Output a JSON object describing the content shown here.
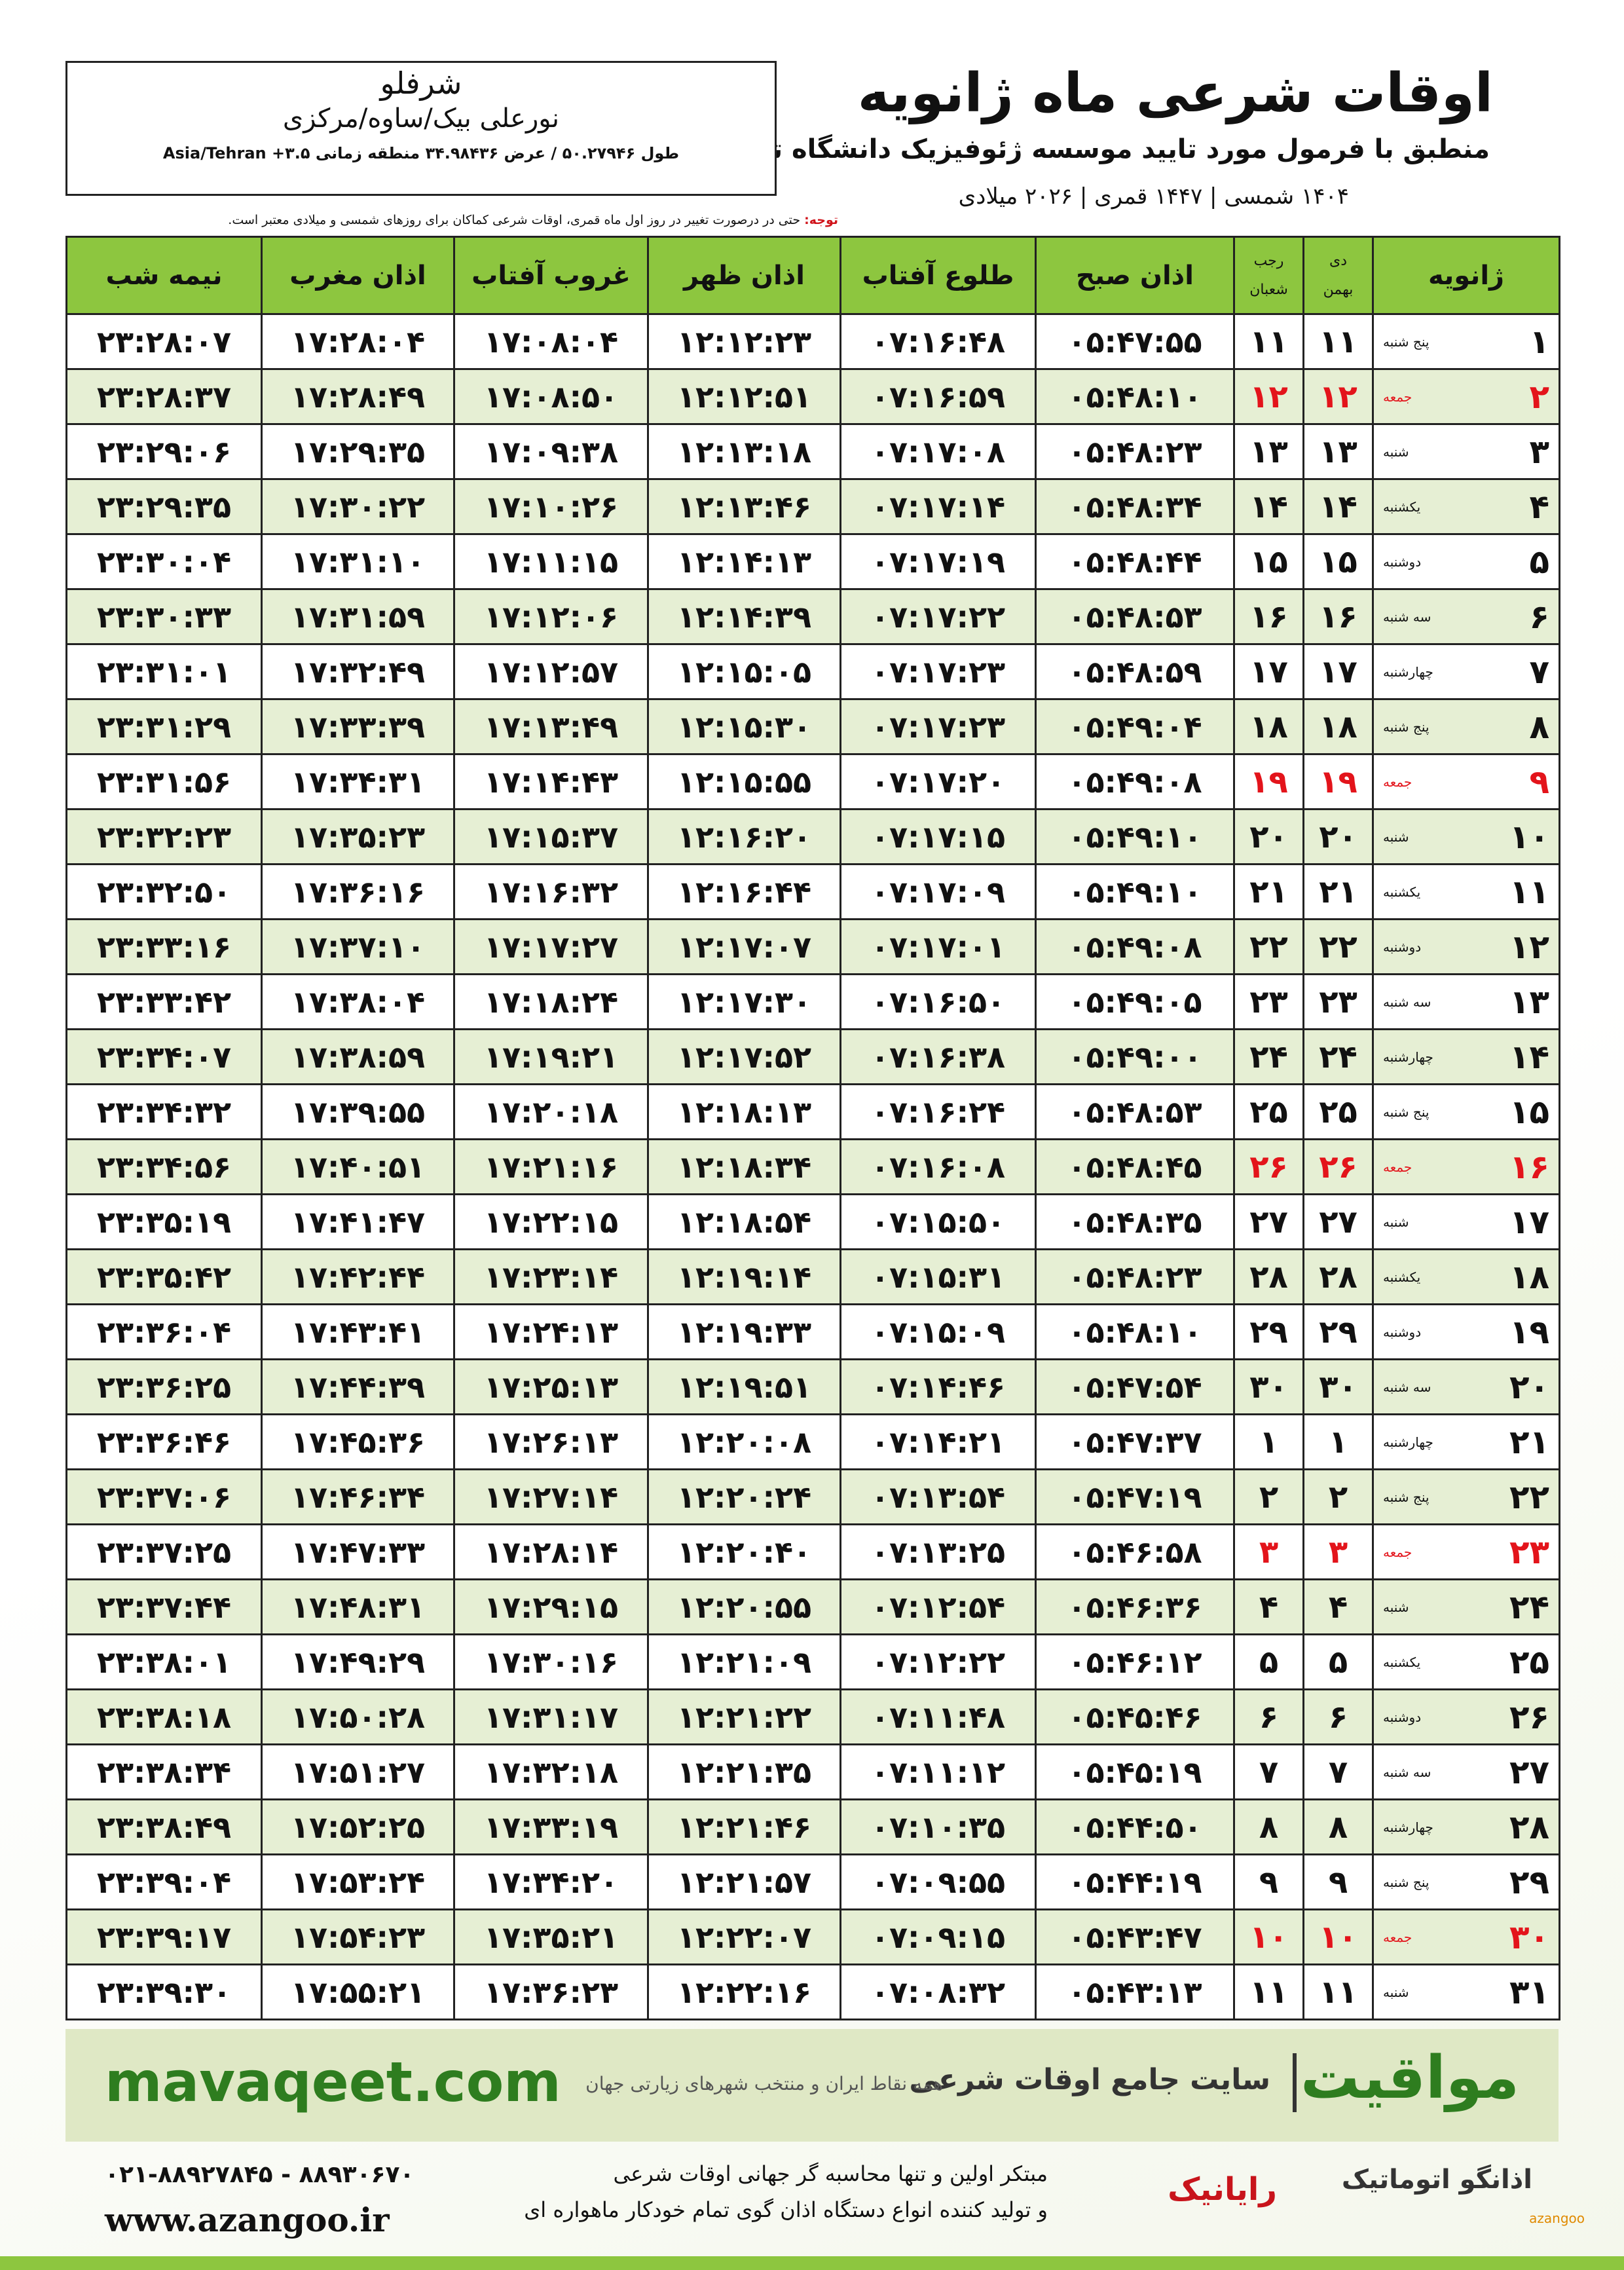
{
  "header": {
    "title": "اوقات شرعی ماه ژانویه",
    "subtitle": "منطبق با فرمول مورد تایید موسسه ژئوفیزیک دانشگاه تهران",
    "dates": "۱۴۰۴ شمسی | ۱۴۴۷ قمری | ۲۰۲۶ میلادی"
  },
  "location": {
    "city": "شرفلو",
    "region": "نورعلی بیک/ساوه/مرکزی",
    "coords": "طول ۵۰.۲۷۹۴۶ / عرض ۳۴.۹۸۴۳۶ منطقه زمانی ۳.۵+ Asia/Tehran"
  },
  "note": {
    "label": "توجه:",
    "text": "حتی در درصورت تغییر در روز اول ماه قمری، اوقات شرعی کماکان برای روزهای شمسی و میلادی معتبر است."
  },
  "table": {
    "columns": [
      "ژانویه",
      [
        "دی",
        "بهمن"
      ],
      [
        "رجب",
        "شعبان"
      ],
      "اذان صبح",
      "طلوع آفتاب",
      "اذان ظهر",
      "غروب آفتاب",
      "اذان مغرب",
      "نیمه شب"
    ],
    "rows": [
      {
        "day": "۱",
        "weekday": "پنج شنبه",
        "shamsi": "۱۱",
        "qamari": "۱۱",
        "times": [
          "۰۵:۴۷:۵۵",
          "۰۷:۱۶:۴۸",
          "۱۲:۱۲:۲۳",
          "۱۷:۰۸:۰۴",
          "۱۷:۲۸:۰۴",
          "۲۳:۲۸:۰۷"
        ]
      },
      {
        "day": "۲",
        "weekday": "جمعه",
        "shamsi": "۱۲",
        "qamari": "۱۲",
        "color": "#e3141b",
        "times": [
          "۰۵:۴۸:۱۰",
          "۰۷:۱۶:۵۹",
          "۱۲:۱۲:۵۱",
          "۱۷:۰۸:۵۰",
          "۱۷:۲۸:۴۹",
          "۲۳:۲۸:۳۷"
        ]
      },
      {
        "day": "۳",
        "weekday": "شنبه",
        "shamsi": "۱۳",
        "qamari": "۱۳",
        "times": [
          "۰۵:۴۸:۲۳",
          "۰۷:۱۷:۰۸",
          "۱۲:۱۳:۱۸",
          "۱۷:۰۹:۳۸",
          "۱۷:۲۹:۳۵",
          "۲۳:۲۹:۰۶"
        ]
      },
      {
        "day": "۴",
        "weekday": "یکشنبه",
        "shamsi": "۱۴",
        "qamari": "۱۴",
        "times": [
          "۰۵:۴۸:۳۴",
          "۰۷:۱۷:۱۴",
          "۱۲:۱۳:۴۶",
          "۱۷:۱۰:۲۶",
          "۱۷:۳۰:۲۲",
          "۲۳:۲۹:۳۵"
        ]
      },
      {
        "day": "۵",
        "weekday": "دوشنبه",
        "shamsi": "۱۵",
        "qamari": "۱۵",
        "times": [
          "۰۵:۴۸:۴۴",
          "۰۷:۱۷:۱۹",
          "۱۲:۱۴:۱۳",
          "۱۷:۱۱:۱۵",
          "۱۷:۳۱:۱۰",
          "۲۳:۳۰:۰۴"
        ]
      },
      {
        "day": "۶",
        "weekday": "سه شنبه",
        "shamsi": "۱۶",
        "qamari": "۱۶",
        "times": [
          "۰۵:۴۸:۵۳",
          "۰۷:۱۷:۲۲",
          "۱۲:۱۴:۳۹",
          "۱۷:۱۲:۰۶",
          "۱۷:۳۱:۵۹",
          "۲۳:۳۰:۳۳"
        ]
      },
      {
        "day": "۷",
        "weekday": "چهارشنبه",
        "shamsi": "۱۷",
        "qamari": "۱۷",
        "times": [
          "۰۵:۴۸:۵۹",
          "۰۷:۱۷:۲۳",
          "۱۲:۱۵:۰۵",
          "۱۷:۱۲:۵۷",
          "۱۷:۳۲:۴۹",
          "۲۳:۳۱:۰۱"
        ]
      },
      {
        "day": "۸",
        "weekday": "پنج شنبه",
        "shamsi": "۱۸",
        "qamari": "۱۸",
        "times": [
          "۰۵:۴۹:۰۴",
          "۰۷:۱۷:۲۳",
          "۱۲:۱۵:۳۰",
          "۱۷:۱۳:۴۹",
          "۱۷:۳۳:۳۹",
          "۲۳:۳۱:۲۹"
        ]
      },
      {
        "day": "۹",
        "weekday": "جمعه",
        "shamsi": "۱۹",
        "qamari": "۱۹",
        "color": "#e3141b",
        "times": [
          "۰۵:۴۹:۰۸",
          "۰۷:۱۷:۲۰",
          "۱۲:۱۵:۵۵",
          "۱۷:۱۴:۴۳",
          "۱۷:۳۴:۳۱",
          "۲۳:۳۱:۵۶"
        ]
      },
      {
        "day": "۱۰",
        "weekday": "شنبه",
        "shamsi": "۲۰",
        "qamari": "۲۰",
        "times": [
          "۰۵:۴۹:۱۰",
          "۰۷:۱۷:۱۵",
          "۱۲:۱۶:۲۰",
          "۱۷:۱۵:۳۷",
          "۱۷:۳۵:۲۳",
          "۲۳:۳۲:۲۳"
        ]
      },
      {
        "day": "۱۱",
        "weekday": "یکشنبه",
        "shamsi": "۲۱",
        "qamari": "۲۱",
        "times": [
          "۰۵:۴۹:۱۰",
          "۰۷:۱۷:۰۹",
          "۱۲:۱۶:۴۴",
          "۱۷:۱۶:۳۲",
          "۱۷:۳۶:۱۶",
          "۲۳:۳۲:۵۰"
        ]
      },
      {
        "day": "۱۲",
        "weekday": "دوشنبه",
        "shamsi": "۲۲",
        "qamari": "۲۲",
        "times": [
          "۰۵:۴۹:۰۸",
          "۰۷:۱۷:۰۱",
          "۱۲:۱۷:۰۷",
          "۱۷:۱۷:۲۷",
          "۱۷:۳۷:۱۰",
          "۲۳:۳۳:۱۶"
        ]
      },
      {
        "day": "۱۳",
        "weekday": "سه شنبه",
        "shamsi": "۲۳",
        "qamari": "۲۳",
        "times": [
          "۰۵:۴۹:۰۵",
          "۰۷:۱۶:۵۰",
          "۱۲:۱۷:۳۰",
          "۱۷:۱۸:۲۴",
          "۱۷:۳۸:۰۴",
          "۲۳:۳۳:۴۲"
        ]
      },
      {
        "day": "۱۴",
        "weekday": "چهارشنبه",
        "shamsi": "۲۴",
        "qamari": "۲۴",
        "times": [
          "۰۵:۴۹:۰۰",
          "۰۷:۱۶:۳۸",
          "۱۲:۱۷:۵۲",
          "۱۷:۱۹:۲۱",
          "۱۷:۳۸:۵۹",
          "۲۳:۳۴:۰۷"
        ]
      },
      {
        "day": "۱۵",
        "weekday": "پنج شنبه",
        "shamsi": "۲۵",
        "qamari": "۲۵",
        "times": [
          "۰۵:۴۸:۵۳",
          "۰۷:۱۶:۲۴",
          "۱۲:۱۸:۱۳",
          "۱۷:۲۰:۱۸",
          "۱۷:۳۹:۵۵",
          "۲۳:۳۴:۳۲"
        ]
      },
      {
        "day": "۱۶",
        "weekday": "جمعه",
        "shamsi": "۲۶",
        "qamari": "۲۶",
        "color": "#e3141b",
        "times": [
          "۰۵:۴۸:۴۵",
          "۰۷:۱۶:۰۸",
          "۱۲:۱۸:۳۴",
          "۱۷:۲۱:۱۶",
          "۱۷:۴۰:۵۱",
          "۲۳:۳۴:۵۶"
        ]
      },
      {
        "day": "۱۷",
        "weekday": "شنبه",
        "shamsi": "۲۷",
        "qamari": "۲۷",
        "times": [
          "۰۵:۴۸:۳۵",
          "۰۷:۱۵:۵۰",
          "۱۲:۱۸:۵۴",
          "۱۷:۲۲:۱۵",
          "۱۷:۴۱:۴۷",
          "۲۳:۳۵:۱۹"
        ]
      },
      {
        "day": "۱۸",
        "weekday": "یکشنبه",
        "shamsi": "۲۸",
        "qamari": "۲۸",
        "times": [
          "۰۵:۴۸:۲۳",
          "۰۷:۱۵:۳۱",
          "۱۲:۱۹:۱۴",
          "۱۷:۲۳:۱۴",
          "۱۷:۴۲:۴۴",
          "۲۳:۳۵:۴۲"
        ]
      },
      {
        "day": "۱۹",
        "weekday": "دوشنبه",
        "shamsi": "۲۹",
        "qamari": "۲۹",
        "times": [
          "۰۵:۴۸:۱۰",
          "۰۷:۱۵:۰۹",
          "۱۲:۱۹:۳۳",
          "۱۷:۲۴:۱۳",
          "۱۷:۴۳:۴۱",
          "۲۳:۳۶:۰۴"
        ]
      },
      {
        "day": "۲۰",
        "weekday": "سه شنبه",
        "shamsi": "۳۰",
        "qamari": "۳۰",
        "times": [
          "۰۵:۴۷:۵۴",
          "۰۷:۱۴:۴۶",
          "۱۲:۱۹:۵۱",
          "۱۷:۲۵:۱۳",
          "۱۷:۴۴:۳۹",
          "۲۳:۳۶:۲۵"
        ]
      },
      {
        "day": "۲۱",
        "weekday": "چهارشنبه",
        "shamsi": "۱",
        "qamari": "۱",
        "times": [
          "۰۵:۴۷:۳۷",
          "۰۷:۱۴:۲۱",
          "۱۲:۲۰:۰۸",
          "۱۷:۲۶:۱۳",
          "۱۷:۴۵:۳۶",
          "۲۳:۳۶:۴۶"
        ]
      },
      {
        "day": "۲۲",
        "weekday": "پنج شنبه",
        "shamsi": "۲",
        "qamari": "۲",
        "times": [
          "۰۵:۴۷:۱۹",
          "۰۷:۱۳:۵۴",
          "۱۲:۲۰:۲۴",
          "۱۷:۲۷:۱۴",
          "۱۷:۴۶:۳۴",
          "۲۳:۳۷:۰۶"
        ]
      },
      {
        "day": "۲۳",
        "weekday": "جمعه",
        "shamsi": "۳",
        "qamari": "۳",
        "color": "#e3141b",
        "times": [
          "۰۵:۴۶:۵۸",
          "۰۷:۱۳:۲۵",
          "۱۲:۲۰:۴۰",
          "۱۷:۲۸:۱۴",
          "۱۷:۴۷:۳۳",
          "۲۳:۳۷:۲۵"
        ]
      },
      {
        "day": "۲۴",
        "weekday": "شنبه",
        "shamsi": "۴",
        "qamari": "۴",
        "times": [
          "۰۵:۴۶:۳۶",
          "۰۷:۱۲:۵۴",
          "۱۲:۲۰:۵۵",
          "۱۷:۲۹:۱۵",
          "۱۷:۴۸:۳۱",
          "۲۳:۳۷:۴۴"
        ]
      },
      {
        "day": "۲۵",
        "weekday": "یکشنبه",
        "shamsi": "۵",
        "qamari": "۵",
        "times": [
          "۰۵:۴۶:۱۲",
          "۰۷:۱۲:۲۲",
          "۱۲:۲۱:۰۹",
          "۱۷:۳۰:۱۶",
          "۱۷:۴۹:۲۹",
          "۲۳:۳۸:۰۱"
        ]
      },
      {
        "day": "۲۶",
        "weekday": "دوشنبه",
        "shamsi": "۶",
        "qamari": "۶",
        "times": [
          "۰۵:۴۵:۴۶",
          "۰۷:۱۱:۴۸",
          "۱۲:۲۱:۲۲",
          "۱۷:۳۱:۱۷",
          "۱۷:۵۰:۲۸",
          "۲۳:۳۸:۱۸"
        ]
      },
      {
        "day": "۲۷",
        "weekday": "سه شنبه",
        "shamsi": "۷",
        "qamari": "۷",
        "times": [
          "۰۵:۴۵:۱۹",
          "۰۷:۱۱:۱۲",
          "۱۲:۲۱:۳۵",
          "۱۷:۳۲:۱۸",
          "۱۷:۵۱:۲۷",
          "۲۳:۳۸:۳۴"
        ]
      },
      {
        "day": "۲۸",
        "weekday": "چهارشنبه",
        "shamsi": "۸",
        "qamari": "۸",
        "times": [
          "۰۵:۴۴:۵۰",
          "۰۷:۱۰:۳۵",
          "۱۲:۲۱:۴۶",
          "۱۷:۳۳:۱۹",
          "۱۷:۵۲:۲۵",
          "۲۳:۳۸:۴۹"
        ]
      },
      {
        "day": "۲۹",
        "weekday": "پنج شنبه",
        "shamsi": "۹",
        "qamari": "۹",
        "times": [
          "۰۵:۴۴:۱۹",
          "۰۷:۰۹:۵۵",
          "۱۲:۲۱:۵۷",
          "۱۷:۳۴:۲۰",
          "۱۷:۵۳:۲۴",
          "۲۳:۳۹:۰۴"
        ]
      },
      {
        "day": "۳۰",
        "weekday": "جمعه",
        "shamsi": "۱۰",
        "qamari": "۱۰",
        "color": "#e3141b",
        "times": [
          "۰۵:۴۳:۴۷",
          "۰۷:۰۹:۱۵",
          "۱۲:۲۲:۰۷",
          "۱۷:۳۵:۲۱",
          "۱۷:۵۴:۲۳",
          "۲۳:۳۹:۱۷"
        ]
      },
      {
        "day": "۳۱",
        "weekday": "شنبه",
        "shamsi": "۱۱",
        "qamari": "۱۱",
        "times": [
          "۰۵:۴۳:۱۳",
          "۰۷:۰۸:۳۲",
          "۱۲:۲۲:۱۶",
          "۱۷:۳۶:۲۳",
          "۱۷:۵۵:۲۱",
          "۲۳:۳۹:۳۰"
        ]
      }
    ]
  },
  "footer": {
    "brand": "مواقیت",
    "tagline": "سایت جامع اوقات شرعی",
    "scope": "همه نقاط ایران و منتخب شهرهای زیارتی جهان",
    "site": "mavaqeet.com"
  },
  "bottom": {
    "phones": "۰۲۱-۸۸۹۲۷۸۴۵ - ۸۸۹۳۰۶۷۰",
    "web": "www.azangoo.ir",
    "line1": "مبتکر اولین و تنها محاسبه گر جهانی اوقات شرعی",
    "line2": "و تولید کننده انواع دستگاه اذان گوی تمام خودکار ماهواره ای",
    "brand1": "رایانیک",
    "brand2": "اذانگو اتوماتیک",
    "brand3": "azangoo"
  }
}
